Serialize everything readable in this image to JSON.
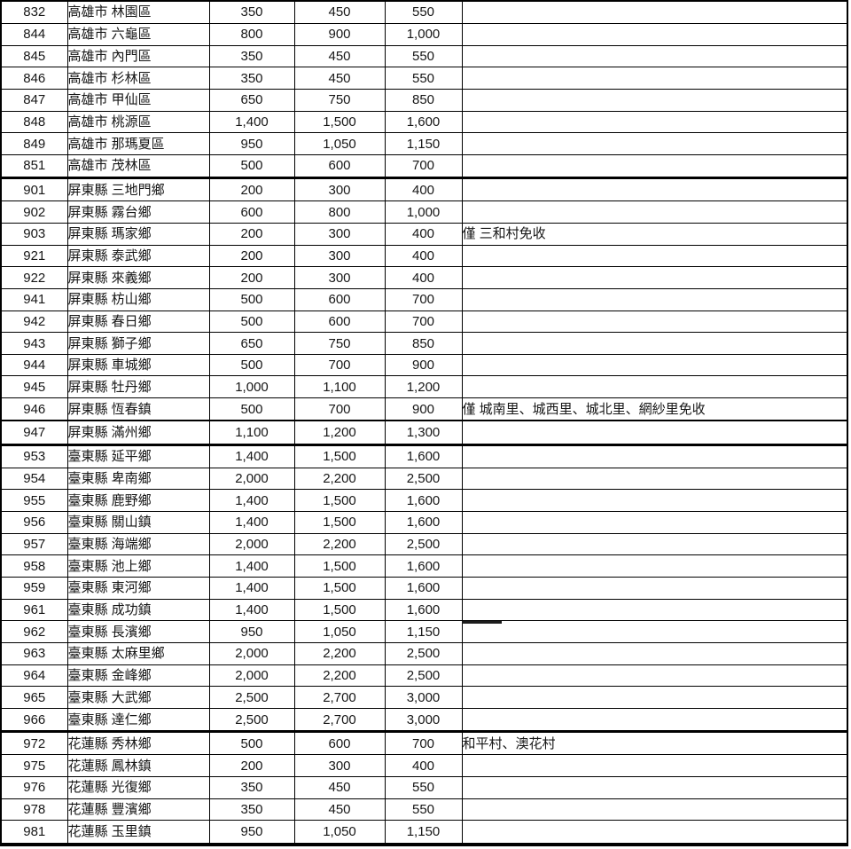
{
  "colors": {
    "background": "#ffffff",
    "grid_border": "#000000",
    "text": "#161616"
  },
  "table": {
    "rows": [
      {
        "code": "832",
        "district": "高雄市 林園區",
        "fees": [
          "350",
          "450",
          "550"
        ],
        "note": ""
      },
      {
        "code": "844",
        "district": "高雄市 六龜區",
        "fees": [
          "800",
          "900",
          "1,000"
        ],
        "note": ""
      },
      {
        "code": "845",
        "district": "高雄市 內門區",
        "fees": [
          "350",
          "450",
          "550"
        ],
        "note": ""
      },
      {
        "code": "846",
        "district": "高雄市 杉林區",
        "fees": [
          "350",
          "450",
          "550"
        ],
        "note": ""
      },
      {
        "code": "847",
        "district": "高雄市 甲仙區",
        "fees": [
          "650",
          "750",
          "850"
        ],
        "note": ""
      },
      {
        "code": "848",
        "district": "高雄市 桃源區",
        "fees": [
          "1,400",
          "1,500",
          "1,600"
        ],
        "note": ""
      },
      {
        "code": "849",
        "district": "高雄市 那瑪夏區",
        "fees": [
          "950",
          "1,050",
          "1,150"
        ],
        "note": ""
      },
      {
        "code": "851",
        "district": "高雄市 茂林區",
        "fees": [
          "500",
          "600",
          "700"
        ],
        "note": ""
      },
      {
        "code": "901",
        "district": "屏東縣 三地門鄉",
        "fees": [
          "200",
          "300",
          "400"
        ],
        "note": "",
        "border_top": "thick"
      },
      {
        "code": "902",
        "district": "屏東縣 霧台鄉",
        "fees": [
          "600",
          "800",
          "1,000"
        ],
        "note": ""
      },
      {
        "code": "903",
        "district": "屏東縣 瑪家鄉",
        "fees": [
          "200",
          "300",
          "400"
        ],
        "note": "僅 三和村免收"
      },
      {
        "code": "921",
        "district": "屏東縣 泰武鄉",
        "fees": [
          "200",
          "300",
          "400"
        ],
        "note": ""
      },
      {
        "code": "922",
        "district": "屏東縣 來義鄉",
        "fees": [
          "200",
          "300",
          "400"
        ],
        "note": ""
      },
      {
        "code": "941",
        "district": "屏東縣 枋山鄉",
        "fees": [
          "500",
          "600",
          "700"
        ],
        "note": ""
      },
      {
        "code": "942",
        "district": "屏東縣 春日鄉",
        "fees": [
          "500",
          "600",
          "700"
        ],
        "note": ""
      },
      {
        "code": "943",
        "district": "屏東縣 獅子鄉",
        "fees": [
          "650",
          "750",
          "850"
        ],
        "note": ""
      },
      {
        "code": "944",
        "district": "屏東縣 車城鄉",
        "fees": [
          "500",
          "700",
          "900"
        ],
        "note": ""
      },
      {
        "code": "945",
        "district": "屏東縣 牡丹鄉",
        "fees": [
          "1,000",
          "1,100",
          "1,200"
        ],
        "note": ""
      },
      {
        "code": "946",
        "district": "屏東縣 恆春鎮",
        "fees": [
          "500",
          "700",
          "900"
        ],
        "note": "僅 城南里、城西里、城北里、網紗里免收"
      },
      {
        "code": "947",
        "district": "屏東縣 滿州鄉",
        "fees": [
          "1,100",
          "1,200",
          "1,300"
        ],
        "note": "",
        "border_top": "medium"
      },
      {
        "code": "953",
        "district": "臺東縣 延平鄉",
        "fees": [
          "1,400",
          "1,500",
          "1,600"
        ],
        "note": "",
        "border_top": "thick"
      },
      {
        "code": "954",
        "district": "臺東縣 卑南鄉",
        "fees": [
          "2,000",
          "2,200",
          "2,500"
        ],
        "note": ""
      },
      {
        "code": "955",
        "district": "臺東縣 鹿野鄉",
        "fees": [
          "1,400",
          "1,500",
          "1,600"
        ],
        "note": ""
      },
      {
        "code": "956",
        "district": "臺東縣 關山鎮",
        "fees": [
          "1,400",
          "1,500",
          "1,600"
        ],
        "note": ""
      },
      {
        "code": "957",
        "district": "臺東縣 海端鄉",
        "fees": [
          "2,000",
          "2,200",
          "2,500"
        ],
        "note": ""
      },
      {
        "code": "958",
        "district": "臺東縣 池上鄉",
        "fees": [
          "1,400",
          "1,500",
          "1,600"
        ],
        "note": ""
      },
      {
        "code": "959",
        "district": "臺東縣 東河鄉",
        "fees": [
          "1,400",
          "1,500",
          "1,600"
        ],
        "note": ""
      },
      {
        "code": "961",
        "district": "臺東縣 成功鎮",
        "fees": [
          "1,400",
          "1,500",
          "1,600"
        ],
        "note": ""
      },
      {
        "code": "962",
        "district": "臺東縣 長濱鄉",
        "fees": [
          "950",
          "1,050",
          "1,150"
        ],
        "note": ""
      },
      {
        "code": "963",
        "district": "臺東縣 太麻里鄉",
        "fees": [
          "2,000",
          "2,200",
          "2,500"
        ],
        "note": ""
      },
      {
        "code": "964",
        "district": "臺東縣 金峰鄉",
        "fees": [
          "2,000",
          "2,200",
          "2,500"
        ],
        "note": ""
      },
      {
        "code": "965",
        "district": "臺東縣 大武鄉",
        "fees": [
          "2,500",
          "2,700",
          "3,000"
        ],
        "note": ""
      },
      {
        "code": "966",
        "district": "臺東縣 達仁鄉",
        "fees": [
          "2,500",
          "2,700",
          "3,000"
        ],
        "note": ""
      },
      {
        "code": "972",
        "district": "花蓮縣 秀林鄉",
        "fees": [
          "500",
          "600",
          "700"
        ],
        "note": "和平村、澳花村",
        "border_top": "thick"
      },
      {
        "code": "975",
        "district": "花蓮縣 鳳林鎮",
        "fees": [
          "200",
          "300",
          "400"
        ],
        "note": ""
      },
      {
        "code": "976",
        "district": "花蓮縣 光復鄉",
        "fees": [
          "350",
          "450",
          "550"
        ],
        "note": ""
      },
      {
        "code": "978",
        "district": "花蓮縣 豐濱鄉",
        "fees": [
          "350",
          "450",
          "550"
        ],
        "note": ""
      },
      {
        "code": "981",
        "district": "花蓮縣 玉里鎮",
        "fees": [
          "950",
          "1,050",
          "1,150"
        ],
        "note": ""
      }
    ]
  }
}
